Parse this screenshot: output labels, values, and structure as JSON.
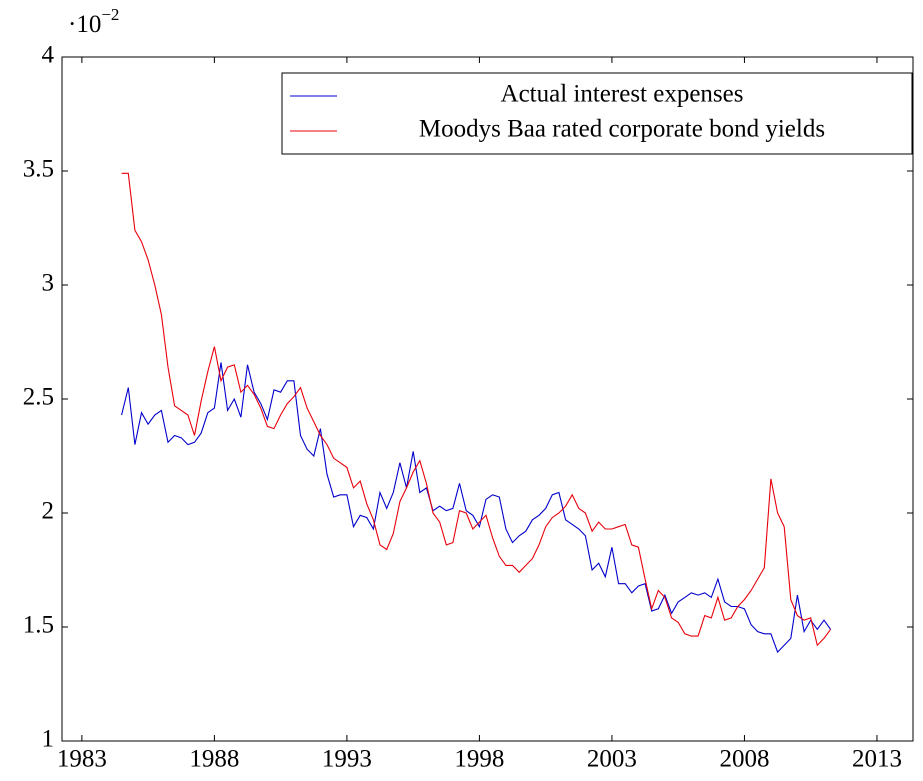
{
  "chart_data": {
    "type": "line",
    "scale_label": {
      "base": "·10",
      "exponent": "−2"
    },
    "x": [
      1984.5,
      1984.75,
      1985,
      1985.25,
      1985.5,
      1985.75,
      1986,
      1986.25,
      1986.5,
      1986.75,
      1987,
      1987.25,
      1987.5,
      1987.75,
      1988,
      1988.25,
      1988.5,
      1988.75,
      1989,
      1989.25,
      1989.5,
      1989.75,
      1990,
      1990.25,
      1990.5,
      1990.75,
      1991,
      1991.25,
      1991.5,
      1991.75,
      1992,
      1992.25,
      1992.5,
      1992.75,
      1993,
      1993.25,
      1993.5,
      1993.75,
      1994,
      1994.25,
      1994.5,
      1994.75,
      1995,
      1995.25,
      1995.5,
      1995.75,
      1996,
      1996.25,
      1996.5,
      1996.75,
      1997,
      1997.25,
      1997.5,
      1997.75,
      1998,
      1998.25,
      1998.5,
      1998.75,
      1999,
      1999.25,
      1999.5,
      1999.75,
      2000,
      2000.25,
      2000.5,
      2000.75,
      2001,
      2001.25,
      2001.5,
      2001.75,
      2002,
      2002.25,
      2002.5,
      2002.75,
      2003,
      2003.25,
      2003.5,
      2003.75,
      2004,
      2004.25,
      2004.5,
      2004.75,
      2005,
      2005.25,
      2005.5,
      2005.75,
      2006,
      2006.25,
      2006.5,
      2006.75,
      2007,
      2007.25,
      2007.5,
      2007.75,
      2008,
      2008.25,
      2008.5,
      2008.75,
      2009,
      2009.25,
      2009.5,
      2009.75,
      2010,
      2010.25,
      2010.5,
      2010.75,
      2011,
      2011.25
    ],
    "series": [
      {
        "name": "Actual interest expenses",
        "color": "#0000cc",
        "values": [
          2.43,
          2.55,
          2.3,
          2.44,
          2.39,
          2.43,
          2.45,
          2.31,
          2.34,
          2.33,
          2.3,
          2.31,
          2.35,
          2.44,
          2.46,
          2.66,
          2.45,
          2.5,
          2.42,
          2.65,
          2.53,
          2.48,
          2.41,
          2.54,
          2.53,
          2.58,
          2.58,
          2.34,
          2.28,
          2.25,
          2.37,
          2.17,
          2.07,
          2.08,
          2.08,
          1.94,
          1.99,
          1.98,
          1.93,
          2.09,
          2.02,
          2.09,
          2.22,
          2.11,
          2.27,
          2.09,
          2.11,
          2.01,
          2.03,
          2.01,
          2.02,
          2.13,
          2.01,
          1.99,
          1.94,
          2.06,
          2.08,
          2.07,
          1.93,
          1.87,
          1.9,
          1.92,
          1.97,
          1.99,
          2.02,
          2.08,
          2.09,
          1.97,
          1.95,
          1.93,
          1.9,
          1.75,
          1.78,
          1.72,
          1.85,
          1.69,
          1.69,
          1.65,
          1.68,
          1.69,
          1.57,
          1.58,
          1.64,
          1.56,
          1.61,
          1.63,
          1.65,
          1.64,
          1.65,
          1.63,
          1.71,
          1.61,
          1.59,
          1.59,
          1.58,
          1.51,
          1.48,
          1.47,
          1.47,
          1.39,
          1.42,
          1.45,
          1.64,
          1.48,
          1.53,
          1.49,
          1.53,
          1.49
        ]
      },
      {
        "name": "Moodys Baa rated corporate bond yields",
        "color": "#e8000b",
        "values": [
          3.49,
          3.49,
          3.24,
          3.19,
          3.11,
          3.0,
          2.87,
          2.64,
          2.47,
          2.45,
          2.43,
          2.34,
          2.49,
          2.62,
          2.73,
          2.58,
          2.64,
          2.65,
          2.53,
          2.56,
          2.52,
          2.46,
          2.38,
          2.37,
          2.43,
          2.48,
          2.51,
          2.55,
          2.46,
          2.4,
          2.34,
          2.3,
          2.24,
          2.22,
          2.2,
          2.11,
          2.14,
          2.04,
          1.97,
          1.86,
          1.84,
          1.91,
          2.05,
          2.11,
          2.18,
          2.23,
          2.13,
          2.0,
          1.96,
          1.86,
          1.87,
          2.01,
          2.0,
          1.93,
          1.96,
          1.99,
          1.89,
          1.81,
          1.77,
          1.77,
          1.74,
          1.77,
          1.8,
          1.86,
          1.94,
          1.98,
          2.0,
          2.03,
          2.08,
          2.02,
          2.0,
          1.92,
          1.96,
          1.93,
          1.93,
          1.94,
          1.95,
          1.86,
          1.85,
          1.71,
          1.58,
          1.66,
          1.63,
          1.54,
          1.52,
          1.47,
          1.46,
          1.46,
          1.55,
          1.54,
          1.63,
          1.53,
          1.54,
          1.59,
          1.62,
          1.66,
          1.71,
          1.76,
          2.15,
          2.0,
          1.94,
          1.62,
          1.55,
          1.53,
          1.54,
          1.42,
          1.45,
          1.49
        ]
      }
    ],
    "xlim": [
      1982.25,
      2014.36
    ],
    "xticks": [
      1983,
      1988,
      1993,
      1998,
      2003,
      2008,
      2013
    ],
    "ylim": [
      1,
      4
    ],
    "yticks": [
      1,
      1.5,
      2,
      2.5,
      3,
      3.5,
      4
    ],
    "legend": "top-right"
  }
}
